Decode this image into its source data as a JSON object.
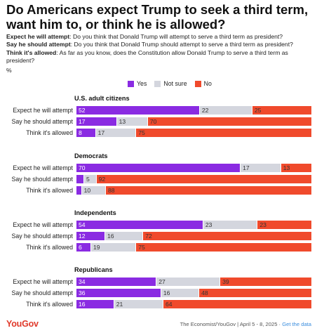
{
  "title": "Do Americans expect Trump to seek a third term, want him to, or think he is allowed?",
  "questions": [
    {
      "name": "Expect he will attempt",
      "text": ": Do you think that Donald Trump will attempt to serve a third term as president?"
    },
    {
      "name": "Say he should attempt",
      "text": ": Do you think that Donald Trump should attempt to serve a third term as president?"
    },
    {
      "name": "Think it's allowed",
      "text": ": As far as you know, does the Constitution allow Donald Trump to serve a third term as president?"
    }
  ],
  "unit": "%",
  "colors": {
    "yes": "#8a2be2",
    "not_sure": "#d4d6de",
    "no": "#f04a2c"
  },
  "footer": {
    "logo": "YouGov",
    "source": "The Economist/YouGov | April 5 - 8, 2025 · ",
    "link": "Get the data"
  },
  "chart_data": {
    "type": "bar",
    "orientation": "horizontal",
    "stacked": true,
    "legend": [
      "Yes",
      "Not sure",
      "No"
    ],
    "legend_position": "top",
    "categories": [
      "Expect he will attempt",
      "Say he should attempt",
      "Think it's allowed"
    ],
    "groups": [
      {
        "name": "U.S. adult citizens",
        "series": [
          {
            "name": "Yes",
            "values": [
              52,
              17,
              8
            ]
          },
          {
            "name": "Not sure",
            "values": [
              22,
              13,
              17
            ]
          },
          {
            "name": "No",
            "values": [
              25,
              70,
              75
            ]
          }
        ]
      },
      {
        "name": "Democrats",
        "series": [
          {
            "name": "Yes",
            "values": [
              70,
              3,
              2
            ]
          },
          {
            "name": "Not sure",
            "values": [
              17,
              5,
              10
            ]
          },
          {
            "name": "No",
            "values": [
              13,
              92,
              88
            ]
          }
        ]
      },
      {
        "name": "Independents",
        "series": [
          {
            "name": "Yes",
            "values": [
              54,
              12,
              6
            ]
          },
          {
            "name": "Not sure",
            "values": [
              23,
              16,
              19
            ]
          },
          {
            "name": "No",
            "values": [
              23,
              72,
              75
            ]
          }
        ]
      },
      {
        "name": "Republicans",
        "series": [
          {
            "name": "Yes",
            "values": [
              34,
              36,
              16
            ]
          },
          {
            "name": "Not sure",
            "values": [
              27,
              16,
              21
            ]
          },
          {
            "name": "No",
            "values": [
              39,
              48,
              64
            ]
          }
        ]
      }
    ],
    "data_labels_shown": {
      "Democrats": {
        "Say he should attempt": {
          "Yes": false
        },
        "Think it's allowed": {
          "Yes": false
        }
      }
    },
    "xlim": [
      0,
      100
    ]
  }
}
